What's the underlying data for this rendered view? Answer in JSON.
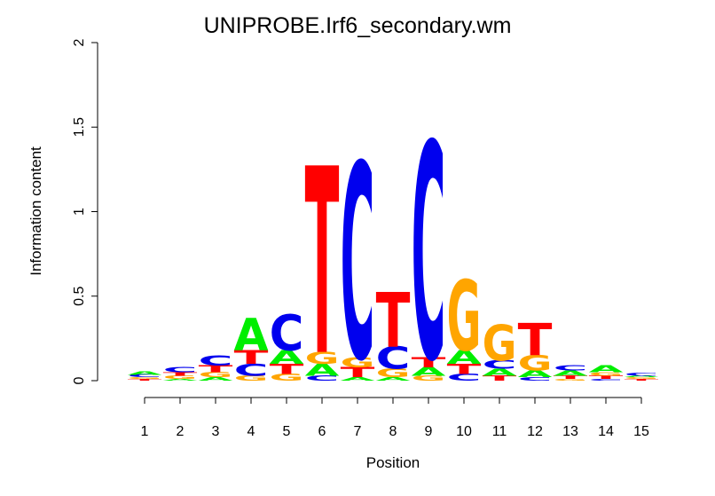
{
  "chart_data": {
    "type": "sequence-logo",
    "title": "UNIPROBE.Irf6_secondary.wm",
    "xlabel": "Position",
    "ylabel": "Information content",
    "ylim": [
      0,
      2
    ],
    "yticks": [
      "0",
      "0.5",
      "1",
      "1.5",
      "2"
    ],
    "positions": [
      "1",
      "2",
      "3",
      "4",
      "5",
      "6",
      "7",
      "8",
      "9",
      "10",
      "11",
      "12",
      "13",
      "14",
      "15"
    ],
    "colors": {
      "A": "#00ee00",
      "C": "#0000ee",
      "G": "#ffa500",
      "T": "#ff0000"
    },
    "stacks": [
      [
        {
          "letter": "T",
          "height": 0.01
        },
        {
          "letter": "G",
          "height": 0.01
        },
        {
          "letter": "C",
          "height": 0.015
        },
        {
          "letter": "A",
          "height": 0.02
        }
      ],
      [
        {
          "letter": "A",
          "height": 0.01
        },
        {
          "letter": "G",
          "height": 0.02
        },
        {
          "letter": "T",
          "height": 0.02
        },
        {
          "letter": "C",
          "height": 0.03
        }
      ],
      [
        {
          "letter": "A",
          "height": 0.02
        },
        {
          "letter": "G",
          "height": 0.03
        },
        {
          "letter": "T",
          "height": 0.04
        },
        {
          "letter": "C",
          "height": 0.06
        }
      ],
      [
        {
          "letter": "G",
          "height": 0.03
        },
        {
          "letter": "C",
          "height": 0.07
        },
        {
          "letter": "T",
          "height": 0.08
        },
        {
          "letter": "A",
          "height": 0.19
        }
      ],
      [
        {
          "letter": "G",
          "height": 0.04
        },
        {
          "letter": "T",
          "height": 0.06
        },
        {
          "letter": "A",
          "height": 0.08
        },
        {
          "letter": "C",
          "height": 0.21
        }
      ],
      [
        {
          "letter": "C",
          "height": 0.03
        },
        {
          "letter": "A",
          "height": 0.07
        },
        {
          "letter": "G",
          "height": 0.07
        },
        {
          "letter": "T",
          "height": 1.09
        }
      ],
      [
        {
          "letter": "A",
          "height": 0.02
        },
        {
          "letter": "T",
          "height": 0.06
        },
        {
          "letter": "G",
          "height": 0.06
        },
        {
          "letter": "C",
          "height": 1.14
        }
      ],
      [
        {
          "letter": "A",
          "height": 0.02
        },
        {
          "letter": "G",
          "height": 0.05
        },
        {
          "letter": "C",
          "height": 0.13
        },
        {
          "letter": "T",
          "height": 0.32
        }
      ],
      [
        {
          "letter": "G",
          "height": 0.03
        },
        {
          "letter": "A",
          "height": 0.05
        },
        {
          "letter": "T",
          "height": 0.06
        },
        {
          "letter": "C",
          "height": 1.26
        }
      ],
      [
        {
          "letter": "C",
          "height": 0.04
        },
        {
          "letter": "T",
          "height": 0.06
        },
        {
          "letter": "A",
          "height": 0.08
        },
        {
          "letter": "G",
          "height": 0.41
        }
      ],
      [
        {
          "letter": "T",
          "height": 0.03
        },
        {
          "letter": "A",
          "height": 0.04
        },
        {
          "letter": "C",
          "height": 0.05
        },
        {
          "letter": "G",
          "height": 0.21
        }
      ],
      [
        {
          "letter": "C",
          "height": 0.02
        },
        {
          "letter": "A",
          "height": 0.04
        },
        {
          "letter": "G",
          "height": 0.09
        },
        {
          "letter": "T",
          "height": 0.19
        }
      ],
      [
        {
          "letter": "G",
          "height": 0.01
        },
        {
          "letter": "T",
          "height": 0.02
        },
        {
          "letter": "A",
          "height": 0.03
        },
        {
          "letter": "C",
          "height": 0.03
        }
      ],
      [
        {
          "letter": "C",
          "height": 0.01
        },
        {
          "letter": "T",
          "height": 0.02
        },
        {
          "letter": "G",
          "height": 0.02
        },
        {
          "letter": "A",
          "height": 0.04
        }
      ],
      [
        {
          "letter": "T",
          "height": 0.01
        },
        {
          "letter": "G",
          "height": 0.01
        },
        {
          "letter": "A",
          "height": 0.01
        },
        {
          "letter": "C",
          "height": 0.015
        }
      ]
    ]
  }
}
